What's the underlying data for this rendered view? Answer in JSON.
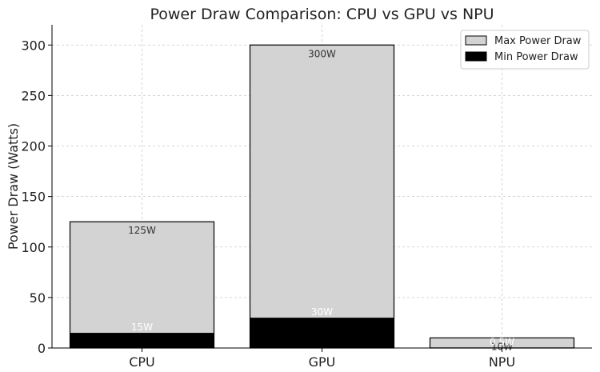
{
  "chart_data": {
    "type": "bar",
    "title": "Power Draw Comparison: CPU vs GPU vs NPU",
    "xlabel": "",
    "ylabel": "Power Draw (Watts)",
    "categories": [
      "CPU",
      "GPU",
      "NPU"
    ],
    "ylim": [
      0,
      320
    ],
    "yticks": [
      0,
      50,
      100,
      150,
      200,
      250,
      300
    ],
    "grid": true,
    "legend_position": "top-right",
    "series": [
      {
        "name": "Max Power Draw",
        "values": [
          125,
          300,
          10
        ],
        "color": "#d3d3d3",
        "labels": [
          "125W",
          "300W",
          "10W"
        ],
        "label_color": "#333333"
      },
      {
        "name": "Min Power Draw",
        "values": [
          15,
          30,
          0.5
        ],
        "color": "#000000",
        "labels": [
          "15W",
          "30W",
          "0.5W"
        ],
        "label_color": "#ffffff"
      }
    ]
  }
}
